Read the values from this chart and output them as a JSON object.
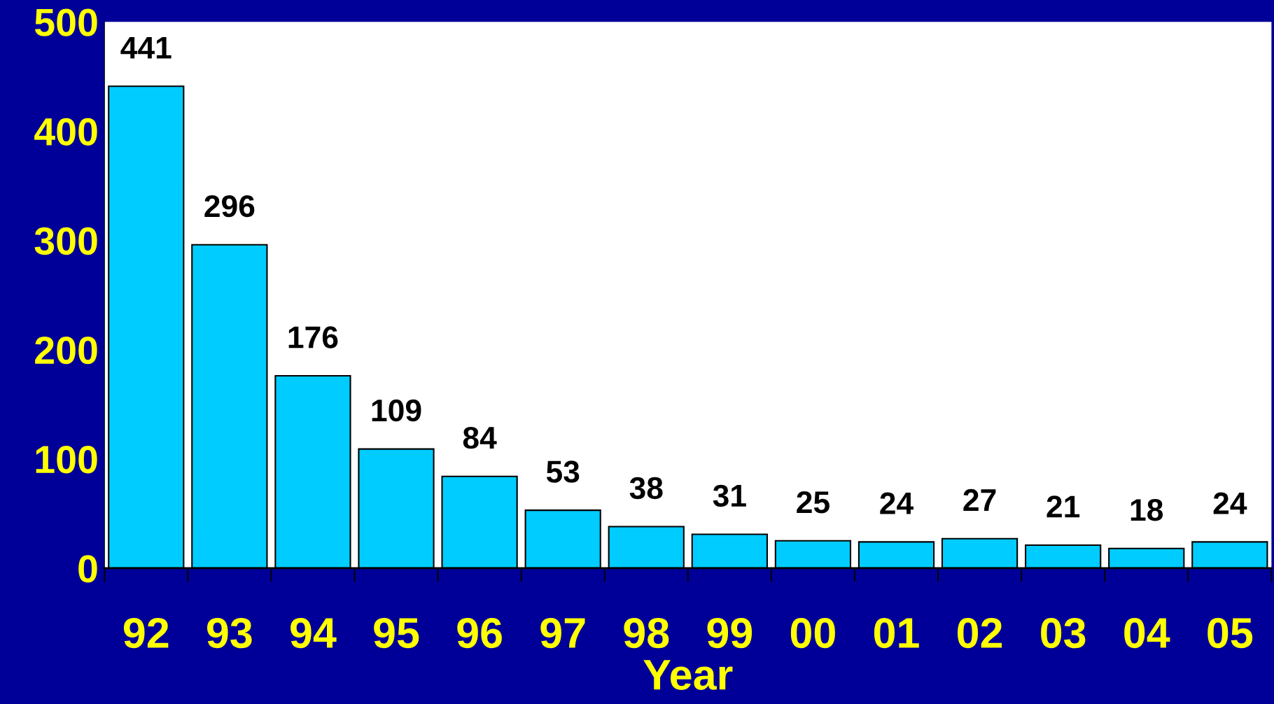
{
  "chart_data": {
    "type": "bar",
    "xlabel": "Year",
    "categories": [
      "92",
      "93",
      "94",
      "95",
      "96",
      "97",
      "98",
      "99",
      "00",
      "01",
      "02",
      "03",
      "04",
      "05"
    ],
    "values": [
      441,
      296,
      176,
      109,
      84,
      53,
      38,
      31,
      25,
      24,
      27,
      21,
      18,
      24
    ],
    "color": "#00ccff",
    "ylim": [
      0,
      500
    ],
    "yticks": [
      0,
      100,
      200,
      300,
      400,
      500
    ],
    "data_labels": true,
    "grid": false,
    "legend": false
  }
}
